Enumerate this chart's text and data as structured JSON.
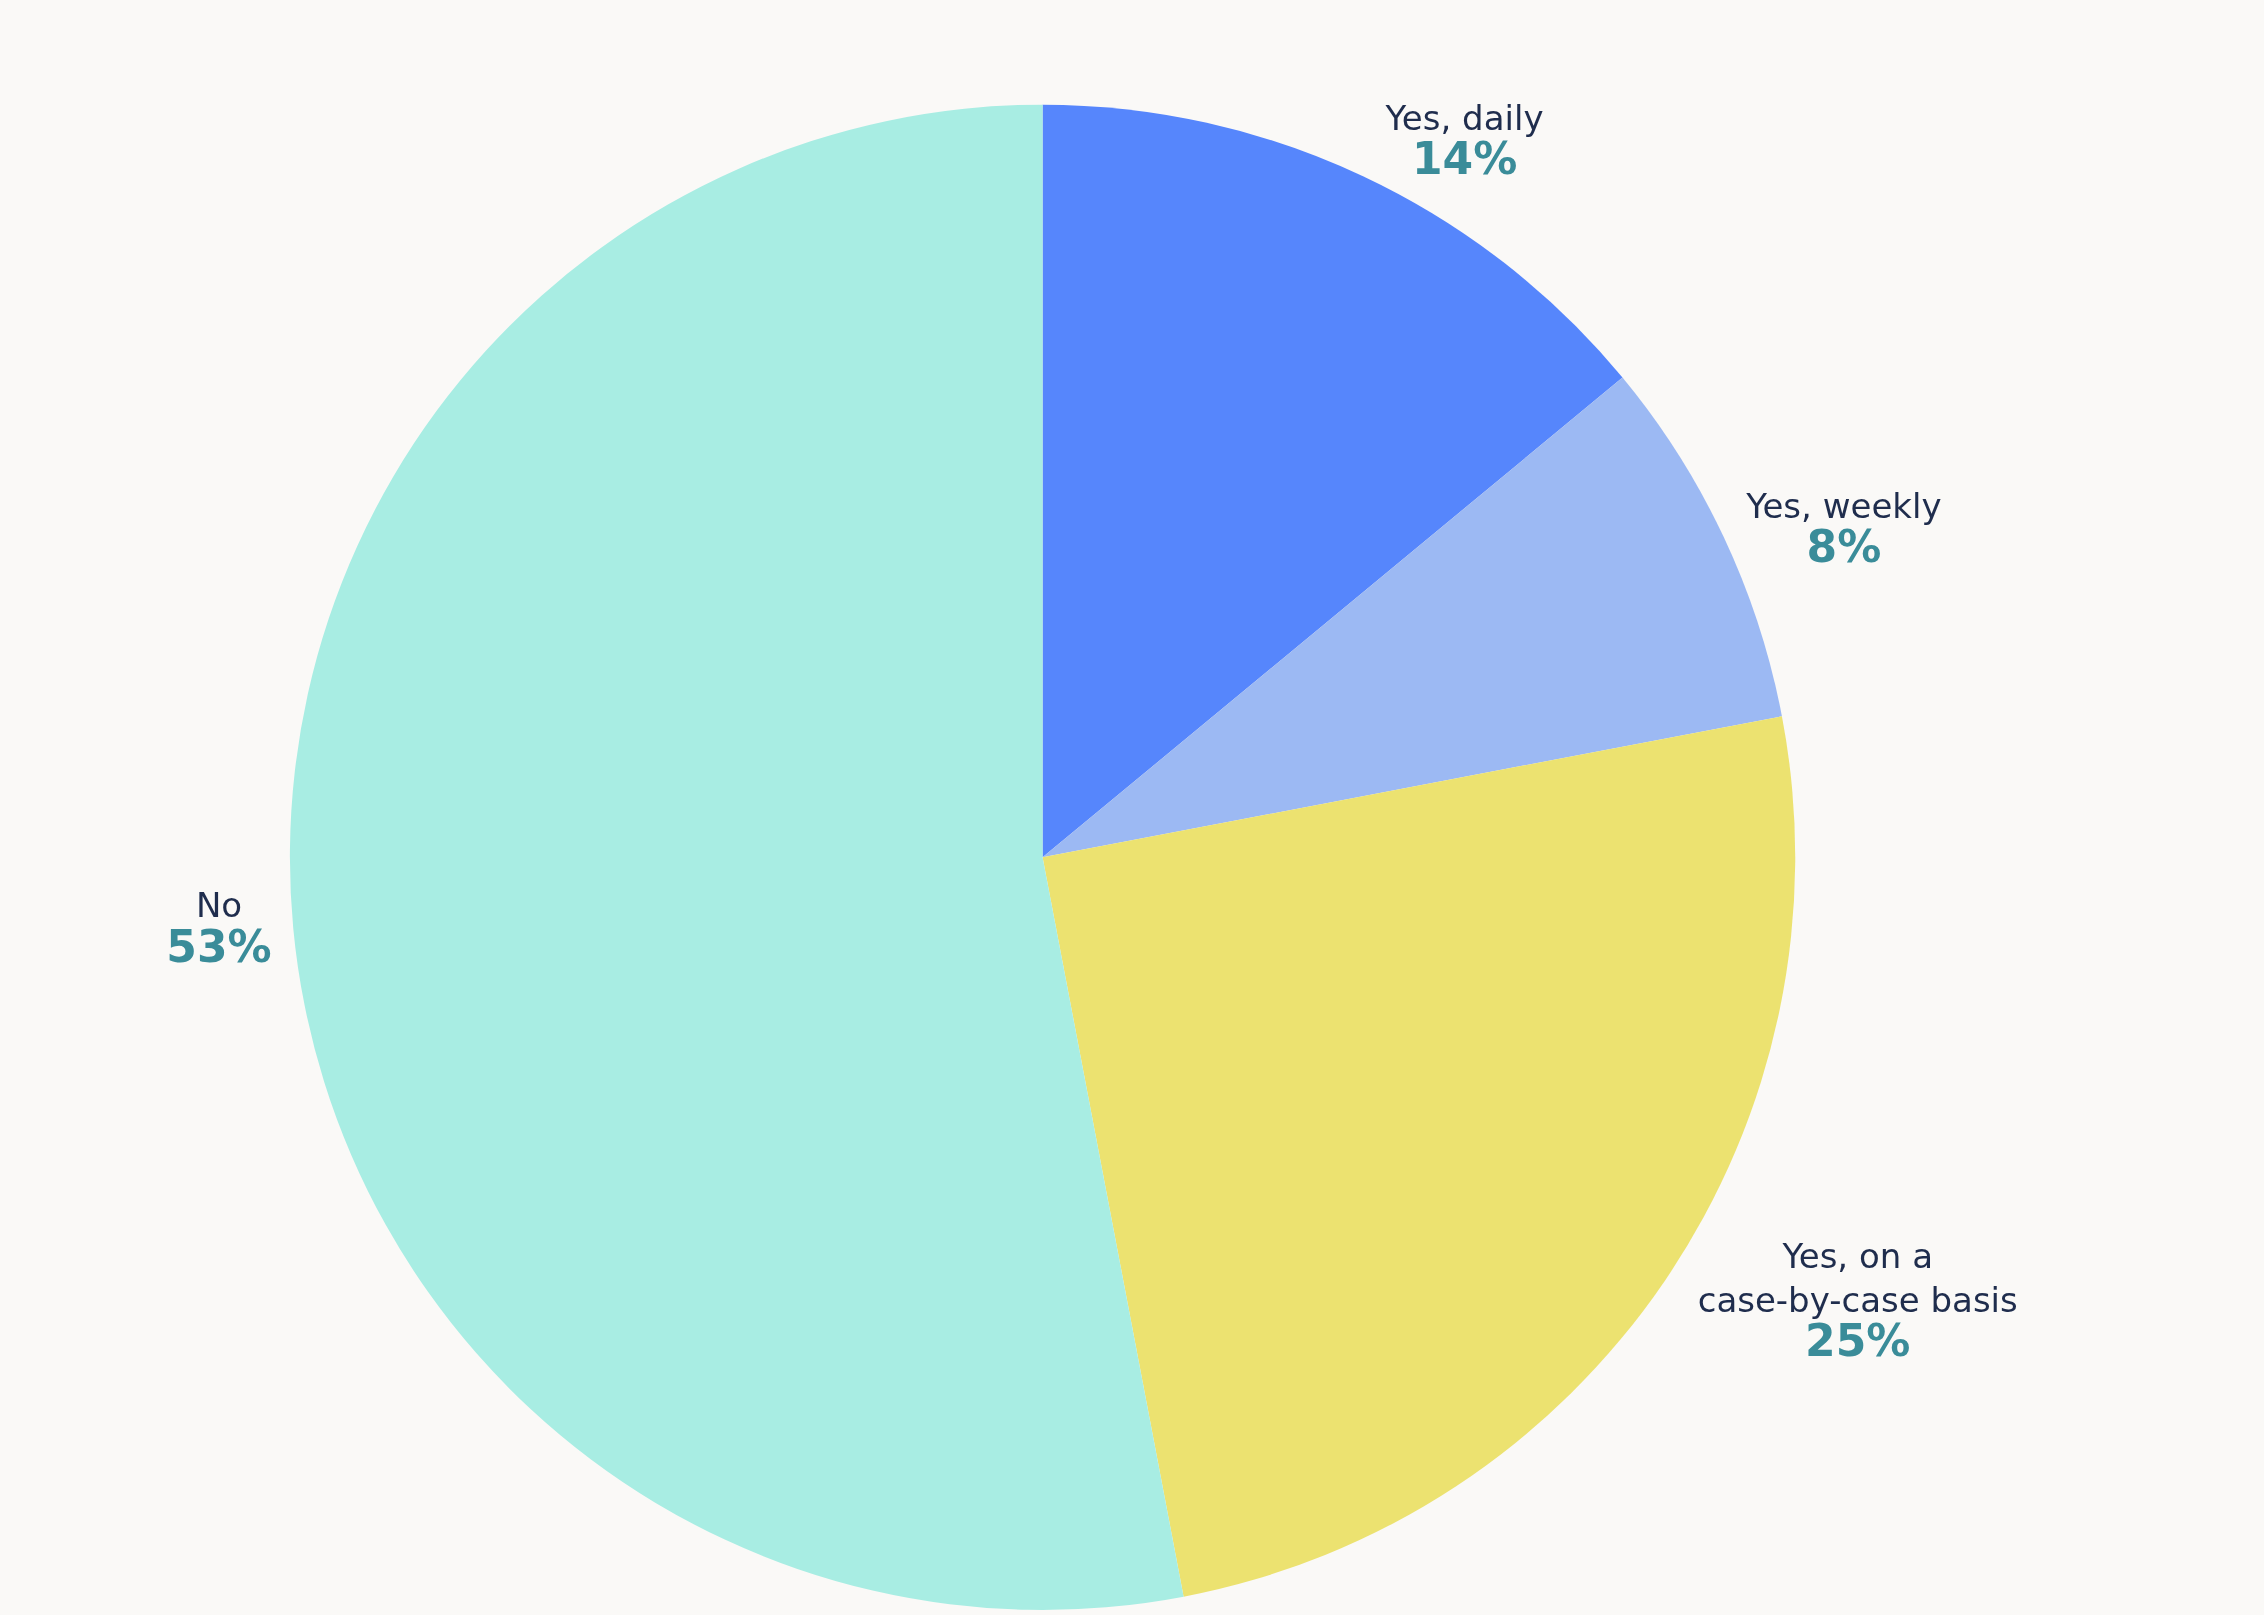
{
  "chart_data": {
    "type": "pie",
    "categories": [
      "Yes, daily",
      "Yes, weekly",
      "Yes, on a\ncase-by-case basis",
      "No"
    ],
    "values": [
      14,
      8,
      25,
      53
    ],
    "value_labels": [
      "14%",
      "8%",
      "25%",
      "53%"
    ],
    "colors": [
      "#5686fc",
      "#9cb9f3",
      "#ece270",
      "#a8ede3"
    ],
    "legend": false
  }
}
